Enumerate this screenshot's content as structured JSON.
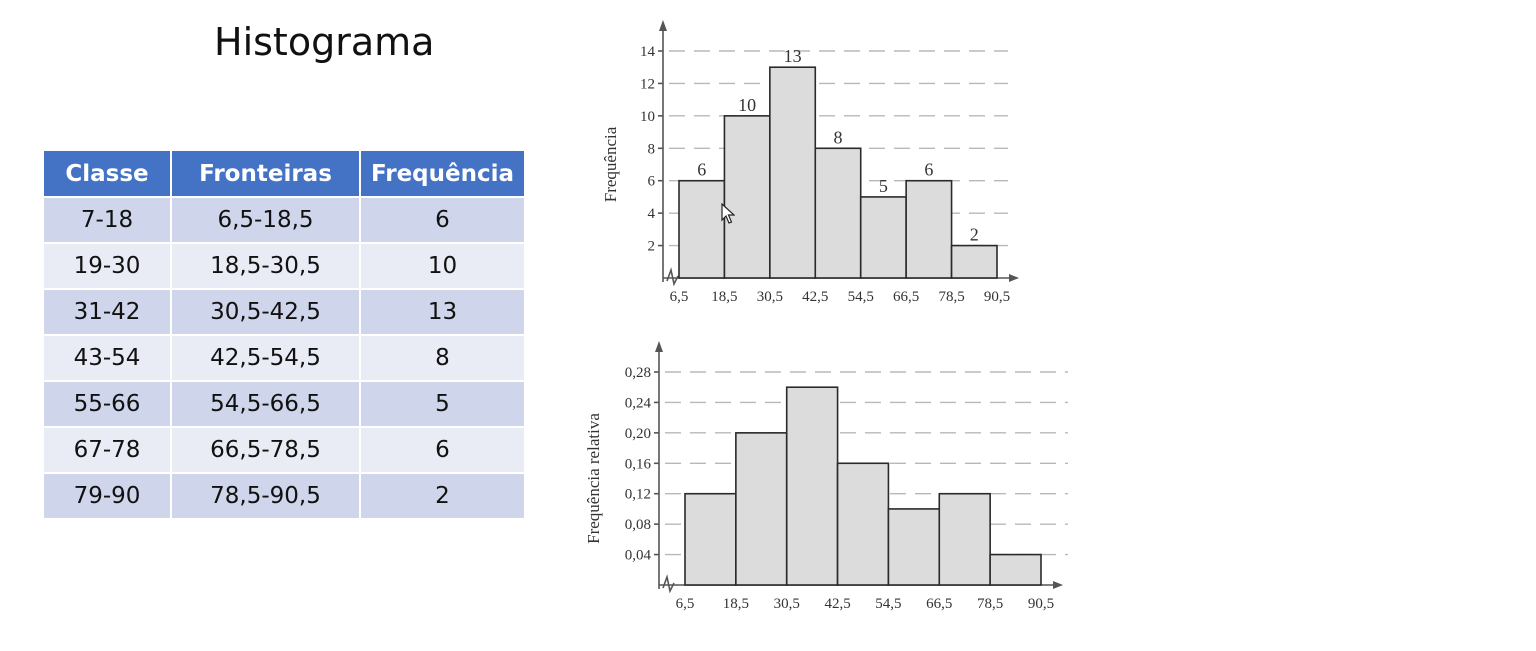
{
  "slide": {
    "title": "Histograma"
  },
  "table": {
    "headers": [
      "Classe",
      "Fronteiras",
      "Frequência"
    ],
    "rows": [
      [
        "7-18",
        "6,5-18,5",
        "6"
      ],
      [
        "19-30",
        "18,5-30,5",
        "10"
      ],
      [
        "31-42",
        "30,5-42,5",
        "13"
      ],
      [
        "43-54",
        "42,5-54,5",
        "8"
      ],
      [
        "55-66",
        "54,5-66,5",
        "5"
      ],
      [
        "67-78",
        "66,5-78,5",
        "6"
      ],
      [
        "79-90",
        "78,5-90,5",
        "2"
      ]
    ]
  },
  "chart_data": [
    {
      "type": "bar",
      "title": "",
      "ylabel": "Frequência",
      "xlabel": "",
      "x_ticks": [
        "6,5",
        "18,5",
        "30,5",
        "42,5",
        "54,5",
        "66,5",
        "78,5",
        "90,5"
      ],
      "y_ticks": [
        "2",
        "4",
        "6",
        "8",
        "10",
        "12",
        "14"
      ],
      "values": [
        6,
        10,
        13,
        8,
        5,
        6,
        2
      ],
      "data_labels": [
        "6",
        "10",
        "13",
        "8",
        "5",
        "6",
        "2"
      ],
      "ylim": [
        0,
        14
      ],
      "grid": true
    },
    {
      "type": "bar",
      "title": "",
      "ylabel": "Frequência relativa",
      "xlabel": "",
      "x_ticks": [
        "6,5",
        "18,5",
        "30,5",
        "42,5",
        "54,5",
        "66,5",
        "78,5",
        "90,5"
      ],
      "y_ticks": [
        "0,04",
        "0,08",
        "0,12",
        "0,16",
        "0,20",
        "0,24",
        "0,28"
      ],
      "values": [
        0.12,
        0.2,
        0.26,
        0.16,
        0.1,
        0.12,
        0.04
      ],
      "ylim": [
        0,
        0.28
      ],
      "grid": true
    }
  ]
}
